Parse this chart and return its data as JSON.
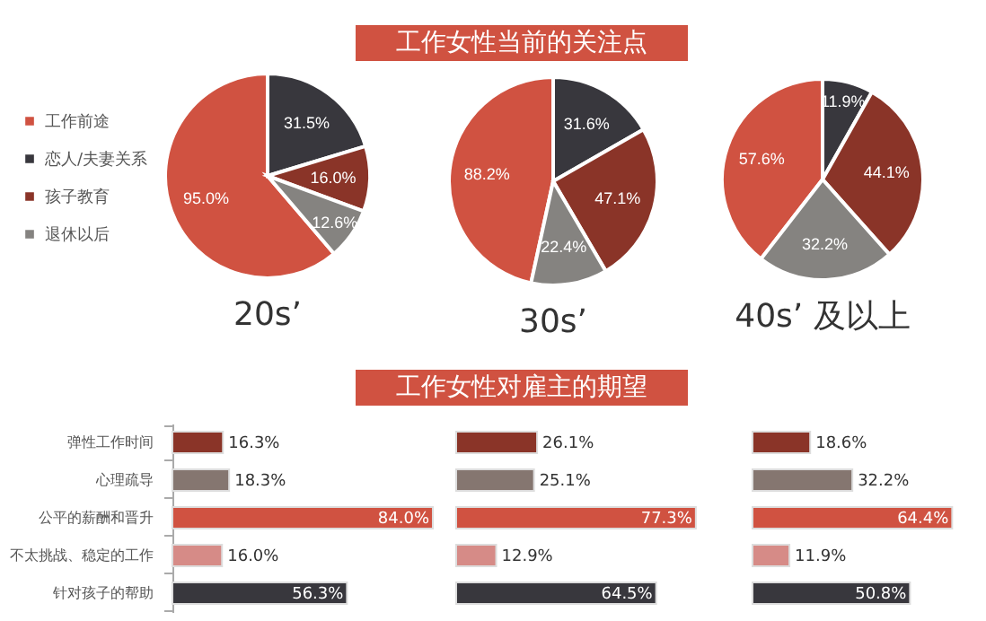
{
  "chart_data": [
    {
      "type": "pie",
      "xlabel": "20s’",
      "categories": [
        "工作前途",
        "恋人/夫妻关系",
        "孩子教育",
        "退休以后"
      ],
      "values": [
        95.0,
        31.5,
        16.0,
        12.6
      ],
      "value_labels": [
        "95.0%",
        "31.5%",
        "16.0%",
        "12.6%"
      ],
      "colors": [
        "#d05241",
        "#38373d",
        "#8a3428",
        "#858380"
      ],
      "legend": "left"
    },
    {
      "type": "pie",
      "title": "工作女性当前的关注点",
      "xlabel": "30s’",
      "categories": [
        null,
        null,
        null,
        null
      ],
      "values": [
        88.2,
        31.6,
        47.1,
        22.4
      ],
      "value_labels": [
        "88.2%",
        "31.6%",
        "47.1%",
        "22.4%"
      ],
      "colors": [
        "#d05241",
        "#38373d",
        "#8a3428",
        "#858380"
      ]
    },
    {
      "type": "pie",
      "xlabel": "40s’ 及以上",
      "categories": [
        null,
        null,
        null,
        null
      ],
      "values": [
        57.6,
        11.9,
        44.1,
        32.2
      ],
      "value_labels": [
        "57.6%",
        "11.9%",
        "44.1%",
        "32.2%"
      ],
      "colors": [
        "#d05241",
        "#38373d",
        "#8a3428",
        "#858380"
      ]
    },
    {
      "type": "bar",
      "orientation": "horizontal",
      "categories": [
        "弹性工作时间",
        "心理疏导",
        "公平的薪酬和晋升",
        "不太挑战、稳定的工作",
        "针对孩子的帮助"
      ],
      "values": [
        16.3,
        18.3,
        84.0,
        16.0,
        56.3
      ],
      "value_labels": [
        "16.3%",
        "18.3%",
        "84.0%",
        "16.0%",
        "56.3%"
      ],
      "colors": [
        "#8a3428",
        "#857670",
        "#d05241",
        "#d68b87",
        "#38373d"
      ],
      "tick_labels": "y"
    },
    {
      "type": "bar",
      "orientation": "horizontal",
      "title": "工作女性对雇主的期望",
      "categories": [
        null,
        null,
        null,
        null,
        null
      ],
      "values": [
        26.1,
        25.1,
        77.3,
        12.9,
        64.5
      ],
      "value_labels": [
        "26.1%",
        "25.1%",
        "77.3%",
        "12.9%",
        "64.5%"
      ],
      "colors": [
        "#8a3428",
        "#857670",
        "#d05241",
        "#d68b87",
        "#38373d"
      ],
      "tick_labels": false
    },
    {
      "type": "bar",
      "orientation": "horizontal",
      "categories": [
        null,
        null,
        null,
        null,
        null
      ],
      "values": [
        18.6,
        32.2,
        64.4,
        11.9,
        50.8
      ],
      "value_labels": [
        "18.6%",
        "32.2%",
        "64.4%",
        "11.9%",
        "50.8%"
      ],
      "colors": [
        "#8a3428",
        "#857670",
        "#d05241",
        "#d68b87",
        "#38373d"
      ],
      "tick_labels": false
    }
  ]
}
